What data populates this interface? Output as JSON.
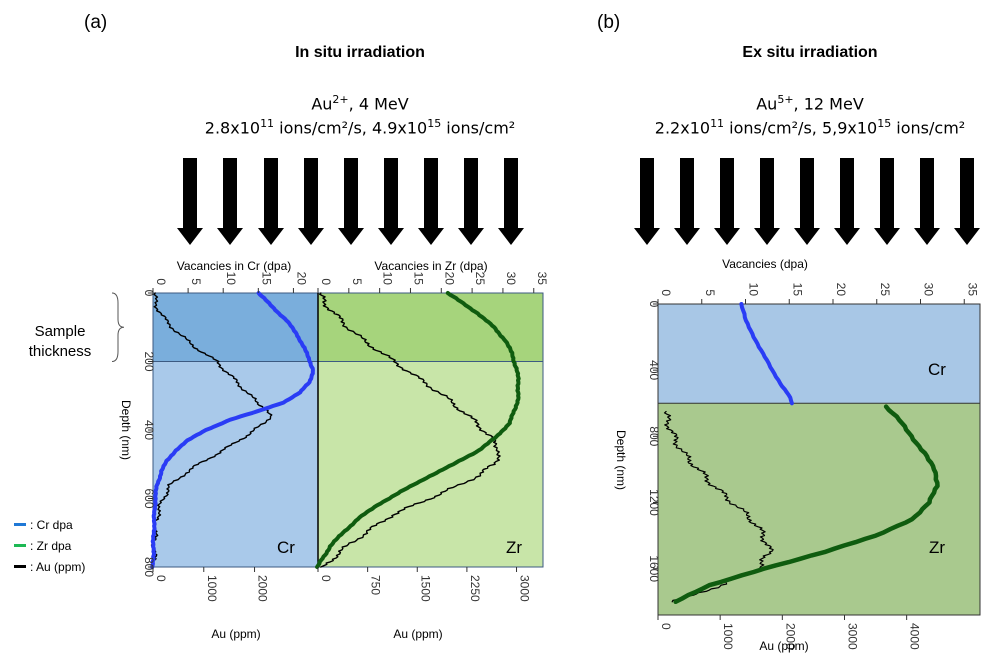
{
  "panel_a": {
    "letter": "(a)",
    "title": "In situ irradiation",
    "ion": {
      "base": "Au",
      "charge": "2+",
      "energy": ", 4 MeV"
    },
    "flux": {
      "p1": "2.8x10",
      "e1": "11",
      "p2": " ions/cm²/s, 4.9x10",
      "e2": "15",
      "p3": " ions/cm²"
    },
    "sample_thickness_label": [
      "Sample",
      "thickness"
    ]
  },
  "panel_b": {
    "letter": "(b)",
    "title": "Ex situ irradiation",
    "ion": {
      "base": "Au",
      "charge": "5+",
      "energy": ", 12 MeV"
    },
    "flux": {
      "p1": "2.2x10",
      "e1": "11",
      "p2": " ions/cm²/s, 5,9x10",
      "e2": "15",
      "p3": " ions/cm²"
    }
  },
  "legend": [
    {
      "label": ": Cr dpa",
      "color": "#1f78d6"
    },
    {
      "label": ": Zr dpa",
      "color": "#1db954"
    },
    {
      "label": ": Au (ppm)",
      "color": "#000000"
    }
  ],
  "colors": {
    "cr_dark": "#7aaedc",
    "cr_light": "#a9c9ea",
    "zr_dark": "#a6d47c",
    "zr_light": "#c8e5a8",
    "cr_b": "#a8c7e6",
    "zr_b": "#a9c98e",
    "cr_line": "#2a3cf5",
    "zr_line": "#0f5c0f",
    "au_line": "#000000",
    "arrow": "#000000"
  },
  "chart_data": [
    {
      "type": "line",
      "panel": "a-left",
      "region_label": "Cr",
      "top_axis_label": "Vacancies in Cr (dpa)",
      "ylabel": "Depth (nm)",
      "xlabel": "Au (ppm)",
      "dpa_ticks": [
        "0",
        "5",
        "10",
        "15",
        "20"
      ],
      "ppm_ticks": [
        "0",
        "1000",
        "2000"
      ],
      "depth_ticks": [
        "0",
        "200",
        "400",
        "600",
        "800"
      ],
      "dpa_lim": [
        0,
        23.5
      ],
      "ppm_lim": [
        0,
        3250
      ],
      "depth_lim": [
        0,
        800
      ],
      "sample_thickness_nm": 200,
      "series": [
        {
          "name": "Cr dpa",
          "axis": "dpa",
          "points": [
            [
              15.0,
              0
            ],
            [
              16.0,
              20
            ],
            [
              17.5,
              50
            ],
            [
              19.0,
              80
            ],
            [
              20.5,
              120
            ],
            [
              21.5,
              160
            ],
            [
              22.3,
              195
            ],
            [
              22.8,
              225
            ],
            [
              22.3,
              260
            ],
            [
              21.0,
              290
            ],
            [
              18.5,
              320
            ],
            [
              15.0,
              345
            ],
            [
              11.0,
              370
            ],
            [
              7.5,
              400
            ],
            [
              5.0,
              430
            ],
            [
              3.2,
              460
            ],
            [
              2.0,
              490
            ],
            [
              1.2,
              520
            ],
            [
              0.6,
              560
            ],
            [
              0.3,
              600
            ],
            [
              0.1,
              700
            ],
            [
              0.0,
              800
            ]
          ]
        },
        {
          "name": "Au (ppm)",
          "axis": "ppm",
          "points": [
            [
              20,
              0
            ],
            [
              40,
              20
            ],
            [
              80,
              40
            ],
            [
              150,
              60
            ],
            [
              250,
              80
            ],
            [
              380,
              100
            ],
            [
              520,
              120
            ],
            [
              680,
              140
            ],
            [
              850,
              160
            ],
            [
              1050,
              180
            ],
            [
              1250,
              200
            ],
            [
              1450,
              230
            ],
            [
              1650,
              260
            ],
            [
              1850,
              290
            ],
            [
              2050,
              320
            ],
            [
              2250,
              340
            ],
            [
              2300,
              360
            ],
            [
              2200,
              380
            ],
            [
              1900,
              410
            ],
            [
              1600,
              440
            ],
            [
              1250,
              470
            ],
            [
              900,
              500
            ],
            [
              600,
              530
            ],
            [
              350,
              560
            ],
            [
              200,
              600
            ],
            [
              100,
              640
            ],
            [
              50,
              680
            ],
            [
              30,
              720
            ],
            [
              20,
              800
            ]
          ]
        }
      ]
    },
    {
      "type": "line",
      "panel": "a-right",
      "region_label": "Zr",
      "top_axis_label": "Vacancies in Zr (dpa)",
      "xlabel": "Au (ppm)",
      "dpa_ticks": [
        "0",
        "5",
        "10",
        "15",
        "20",
        "25",
        "30",
        "35"
      ],
      "ppm_ticks": [
        "0",
        "750",
        "1500",
        "2250",
        "3000"
      ],
      "dpa_lim": [
        0,
        36.5
      ],
      "ppm_lim": [
        0,
        3400
      ],
      "depth_lim": [
        0,
        800
      ],
      "series": [
        {
          "name": "Zr dpa",
          "axis": "dpa",
          "points": [
            [
              21.0,
              0
            ],
            [
              23.5,
              30
            ],
            [
              26.0,
              60
            ],
            [
              28.5,
              100
            ],
            [
              30.5,
              140
            ],
            [
              31.5,
              180
            ],
            [
              32.2,
              220
            ],
            [
              32.5,
              260
            ],
            [
              32.5,
              300
            ],
            [
              32.0,
              340
            ],
            [
              31.0,
              380
            ],
            [
              29.0,
              420
            ],
            [
              26.0,
              460
            ],
            [
              22.0,
              500
            ],
            [
              17.5,
              540
            ],
            [
              13.5,
              580
            ],
            [
              9.5,
              620
            ],
            [
              6.5,
              660
            ],
            [
              4.0,
              700
            ],
            [
              2.0,
              740
            ],
            [
              0.5,
              780
            ],
            [
              0.0,
              800
            ]
          ]
        },
        {
          "name": "Au (ppm)",
          "axis": "ppm",
          "points": [
            [
              20,
              0
            ],
            [
              100,
              30
            ],
            [
              250,
              60
            ],
            [
              450,
              100
            ],
            [
              700,
              140
            ],
            [
              1000,
              180
            ],
            [
              1300,
              220
            ],
            [
              1600,
              260
            ],
            [
              1900,
              300
            ],
            [
              2150,
              340
            ],
            [
              2400,
              380
            ],
            [
              2600,
              420
            ],
            [
              2750,
              460
            ],
            [
              2650,
              500
            ],
            [
              2450,
              530
            ],
            [
              2150,
              560
            ],
            [
              1800,
              590
            ],
            [
              1450,
              620
            ],
            [
              1100,
              650
            ],
            [
              800,
              690
            ],
            [
              500,
              730
            ],
            [
              250,
              770
            ],
            [
              100,
              800
            ]
          ]
        }
      ]
    },
    {
      "type": "line",
      "panel": "b",
      "region_labels": [
        "Cr",
        "Zr"
      ],
      "top_axis_label": "Vacancies (dpa)",
      "ylabel": "Depth (nm)",
      "xlabel": "Au (ppm)",
      "dpa_ticks": [
        "0",
        "5",
        "10",
        "15",
        "20",
        "25",
        "30",
        "35"
      ],
      "ppm_ticks": [
        "0",
        "1000",
        "2000",
        "3000",
        "4000"
      ],
      "depth_ticks": [
        "0",
        "400",
        "800",
        "1200",
        "1600"
      ],
      "dpa_lim": [
        0,
        36.8
      ],
      "ppm_lim": [
        0,
        5180
      ],
      "depth_lim": [
        0,
        1880
      ],
      "cr_zr_interface_nm": 600,
      "series": [
        {
          "name": "Cr dpa",
          "axis": "dpa",
          "points": [
            [
              9.5,
              0
            ],
            [
              10.0,
              100
            ],
            [
              11.0,
              200
            ],
            [
              12.0,
              300
            ],
            [
              13.0,
              400
            ],
            [
              14.0,
              480
            ],
            [
              15.0,
              550
            ],
            [
              15.3,
              600
            ]
          ]
        },
        {
          "name": "Zr dpa",
          "axis": "dpa",
          "points": [
            [
              26.0,
              620
            ],
            [
              27.5,
              700
            ],
            [
              29.0,
              800
            ],
            [
              30.5,
              900
            ],
            [
              31.5,
              1000
            ],
            [
              32.0,
              1100
            ],
            [
              31.0,
              1200
            ],
            [
              29.0,
              1300
            ],
            [
              25.0,
              1400
            ],
            [
              19.0,
              1500
            ],
            [
              12.0,
              1600
            ],
            [
              6.0,
              1700
            ],
            [
              2.0,
              1800
            ]
          ]
        },
        {
          "name": "Au (ppm)",
          "axis": "ppm",
          "points": [
            [
              100,
              650
            ],
            [
              150,
              700
            ],
            [
              250,
              800
            ],
            [
              400,
              900
            ],
            [
              650,
              1000
            ],
            [
              900,
              1100
            ],
            [
              1200,
              1200
            ],
            [
              1500,
              1300
            ],
            [
              1700,
              1400
            ],
            [
              1800,
              1500
            ],
            [
              1600,
              1600
            ],
            [
              1000,
              1700
            ],
            [
              600,
              1760
            ],
            [
              200,
              1800
            ]
          ]
        }
      ]
    }
  ]
}
